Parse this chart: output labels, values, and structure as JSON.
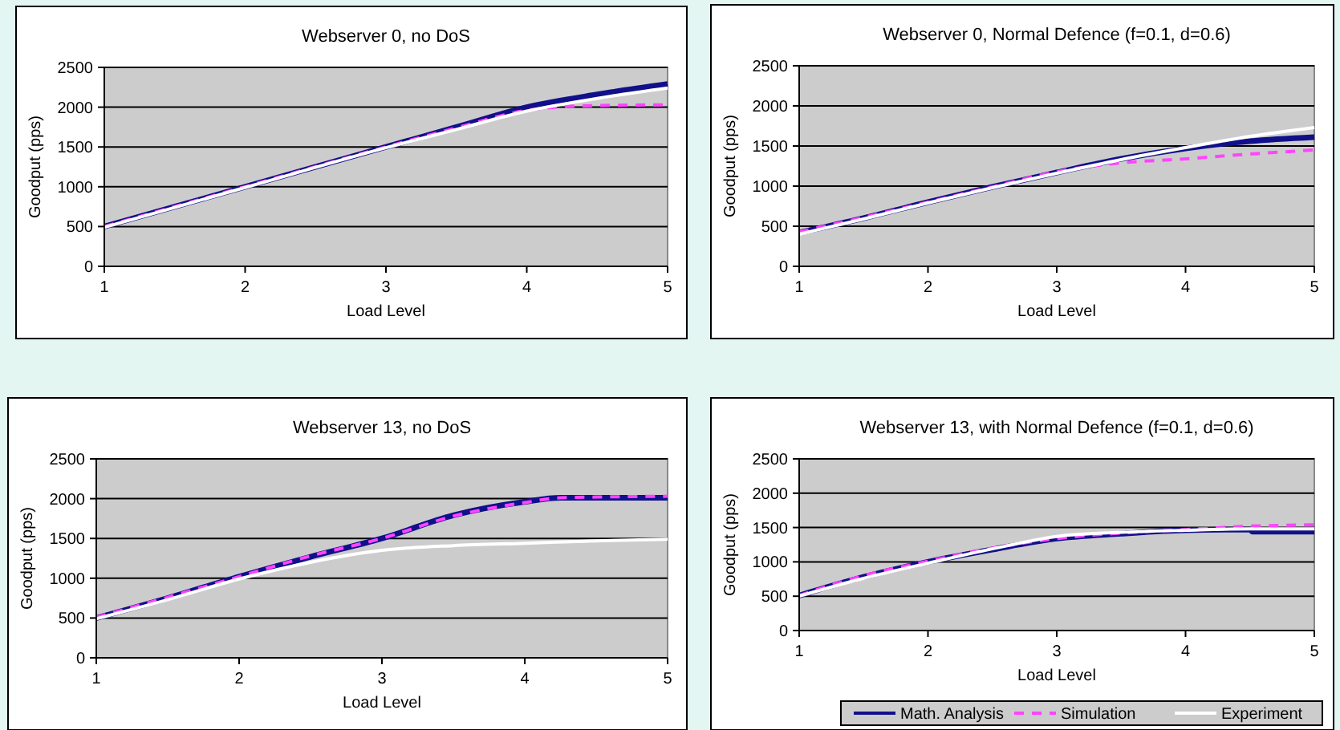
{
  "chart_data": [
    {
      "type": "line",
      "title": "Webserver 0, no DoS",
      "xlabel": "Load Level",
      "ylabel": "Goodput (pps)",
      "xlim": [
        1,
        5
      ],
      "xticks": [
        1,
        2,
        3,
        4,
        5
      ],
      "ylim": [
        0,
        2500
      ],
      "yticks": [
        0,
        500,
        1000,
        1500,
        2000,
        2500
      ],
      "grid": "y",
      "legend": false,
      "series": [
        {
          "color": "#10108a",
          "line_style": "solid",
          "x": [
            1,
            2,
            3,
            3.5,
            4,
            4.5,
            5
          ],
          "values": [
            500,
            1000,
            1500,
            1750,
            2000,
            2160,
            2290
          ]
        },
        {
          "color": "#ff44ff",
          "line_style": "dashed",
          "x": [
            1,
            2,
            3,
            3.5,
            4,
            4.3,
            4.5,
            5
          ],
          "values": [
            500,
            1000,
            1500,
            1740,
            1960,
            2010,
            2020,
            2030
          ]
        },
        {
          "color": "#ffffff",
          "line_style": "solid",
          "x": [
            1,
            2,
            3,
            3.5,
            4,
            4.5,
            5
          ],
          "values": [
            490,
            990,
            1490,
            1720,
            1950,
            2110,
            2240
          ]
        }
      ]
    },
    {
      "type": "line",
      "title": "Webserver 0, Normal Defence (f=0.1, d=0.6)",
      "xlabel": "Load Level",
      "ylabel": "Goodput (pps)",
      "xlim": [
        1,
        5
      ],
      "xticks": [
        1,
        2,
        3,
        4,
        5
      ],
      "ylim": [
        0,
        2500
      ],
      "yticks": [
        0,
        500,
        1000,
        1500,
        2000,
        2500
      ],
      "grid": "y",
      "legend": false,
      "series": [
        {
          "color": "#10108a",
          "line_style": "solid",
          "x": [
            1,
            1.5,
            2,
            2.5,
            3,
            3.5,
            4,
            4.5,
            5
          ],
          "values": [
            420,
            600,
            800,
            990,
            1170,
            1340,
            1470,
            1560,
            1610
          ]
        },
        {
          "color": "#ff44ff",
          "line_style": "dashed",
          "x": [
            1,
            1.5,
            2,
            2.5,
            3,
            3.5,
            4,
            4.5,
            5
          ],
          "values": [
            430,
            610,
            800,
            990,
            1180,
            1290,
            1340,
            1400,
            1450
          ]
        },
        {
          "color": "#ffffff",
          "line_style": "solid",
          "x": [
            1,
            1.5,
            2,
            2.5,
            3,
            3.5,
            4,
            4.5,
            5
          ],
          "values": [
            400,
            590,
            790,
            980,
            1160,
            1330,
            1480,
            1620,
            1730
          ]
        }
      ]
    },
    {
      "type": "line",
      "title": "Webserver 13, no DoS",
      "xlabel": "Load Level",
      "ylabel": "Goodput (pps)",
      "xlim": [
        1,
        5
      ],
      "xticks": [
        1,
        2,
        3,
        4,
        5
      ],
      "ylim": [
        0,
        2500
      ],
      "yticks": [
        0,
        500,
        1000,
        1500,
        2000,
        2500
      ],
      "grid": "y",
      "legend": false,
      "series": [
        {
          "color": "#10108a",
          "line_style": "solid",
          "x": [
            1,
            1.5,
            2,
            2.5,
            3,
            3.5,
            4,
            4.25,
            4.5,
            5
          ],
          "values": [
            500,
            750,
            1020,
            1270,
            1500,
            1790,
            1960,
            2010,
            2010,
            2010
          ]
        },
        {
          "color": "#ff44ff",
          "line_style": "dashed",
          "x": [
            1,
            1.5,
            2,
            2.5,
            3,
            3.5,
            4,
            4.25,
            4.5,
            5
          ],
          "values": [
            510,
            760,
            1020,
            1280,
            1500,
            1780,
            1950,
            2010,
            2020,
            2030
          ]
        },
        {
          "color": "#ffffff",
          "line_style": "solid",
          "x": [
            1,
            1.5,
            2,
            2.5,
            3,
            3.5,
            4,
            4.5,
            5
          ],
          "values": [
            490,
            730,
            990,
            1200,
            1350,
            1410,
            1440,
            1470,
            1490
          ]
        }
      ]
    },
    {
      "type": "line",
      "title": "Webserver 13, with Normal Defence (f=0.1, d=0.6)",
      "xlabel": "Load Level",
      "ylabel": "Goodput (pps)",
      "xlim": [
        1,
        5
      ],
      "xticks": [
        1,
        2,
        3,
        4,
        5
      ],
      "ylim": [
        0,
        2500
      ],
      "yticks": [
        0,
        500,
        1000,
        1500,
        2000,
        2500
      ],
      "grid": "y",
      "legend": "bottom",
      "series": [
        {
          "name": "Math. Analysis",
          "color": "#10108a",
          "line_style": "solid",
          "x": [
            1,
            1.5,
            2,
            2.5,
            3,
            3.5,
            4,
            4.5,
            4.52,
            5
          ],
          "values": [
            510,
            780,
            1000,
            1180,
            1340,
            1410,
            1460,
            1470,
            1440,
            1440
          ]
        },
        {
          "name": "Simulation",
          "color": "#ff44ff",
          "line_style": "dashed",
          "x": [
            1,
            1.5,
            2,
            2.5,
            3,
            3.5,
            4,
            4.5,
            5
          ],
          "values": [
            510,
            800,
            1010,
            1200,
            1340,
            1420,
            1470,
            1520,
            1540
          ]
        },
        {
          "name": "Experiment",
          "color": "#ffffff",
          "line_style": "solid",
          "x": [
            1,
            1.5,
            2,
            2.5,
            3,
            3.5,
            4,
            4.5,
            5
          ],
          "values": [
            500,
            760,
            980,
            1190,
            1370,
            1430,
            1460,
            1480,
            1480
          ]
        }
      ]
    }
  ]
}
